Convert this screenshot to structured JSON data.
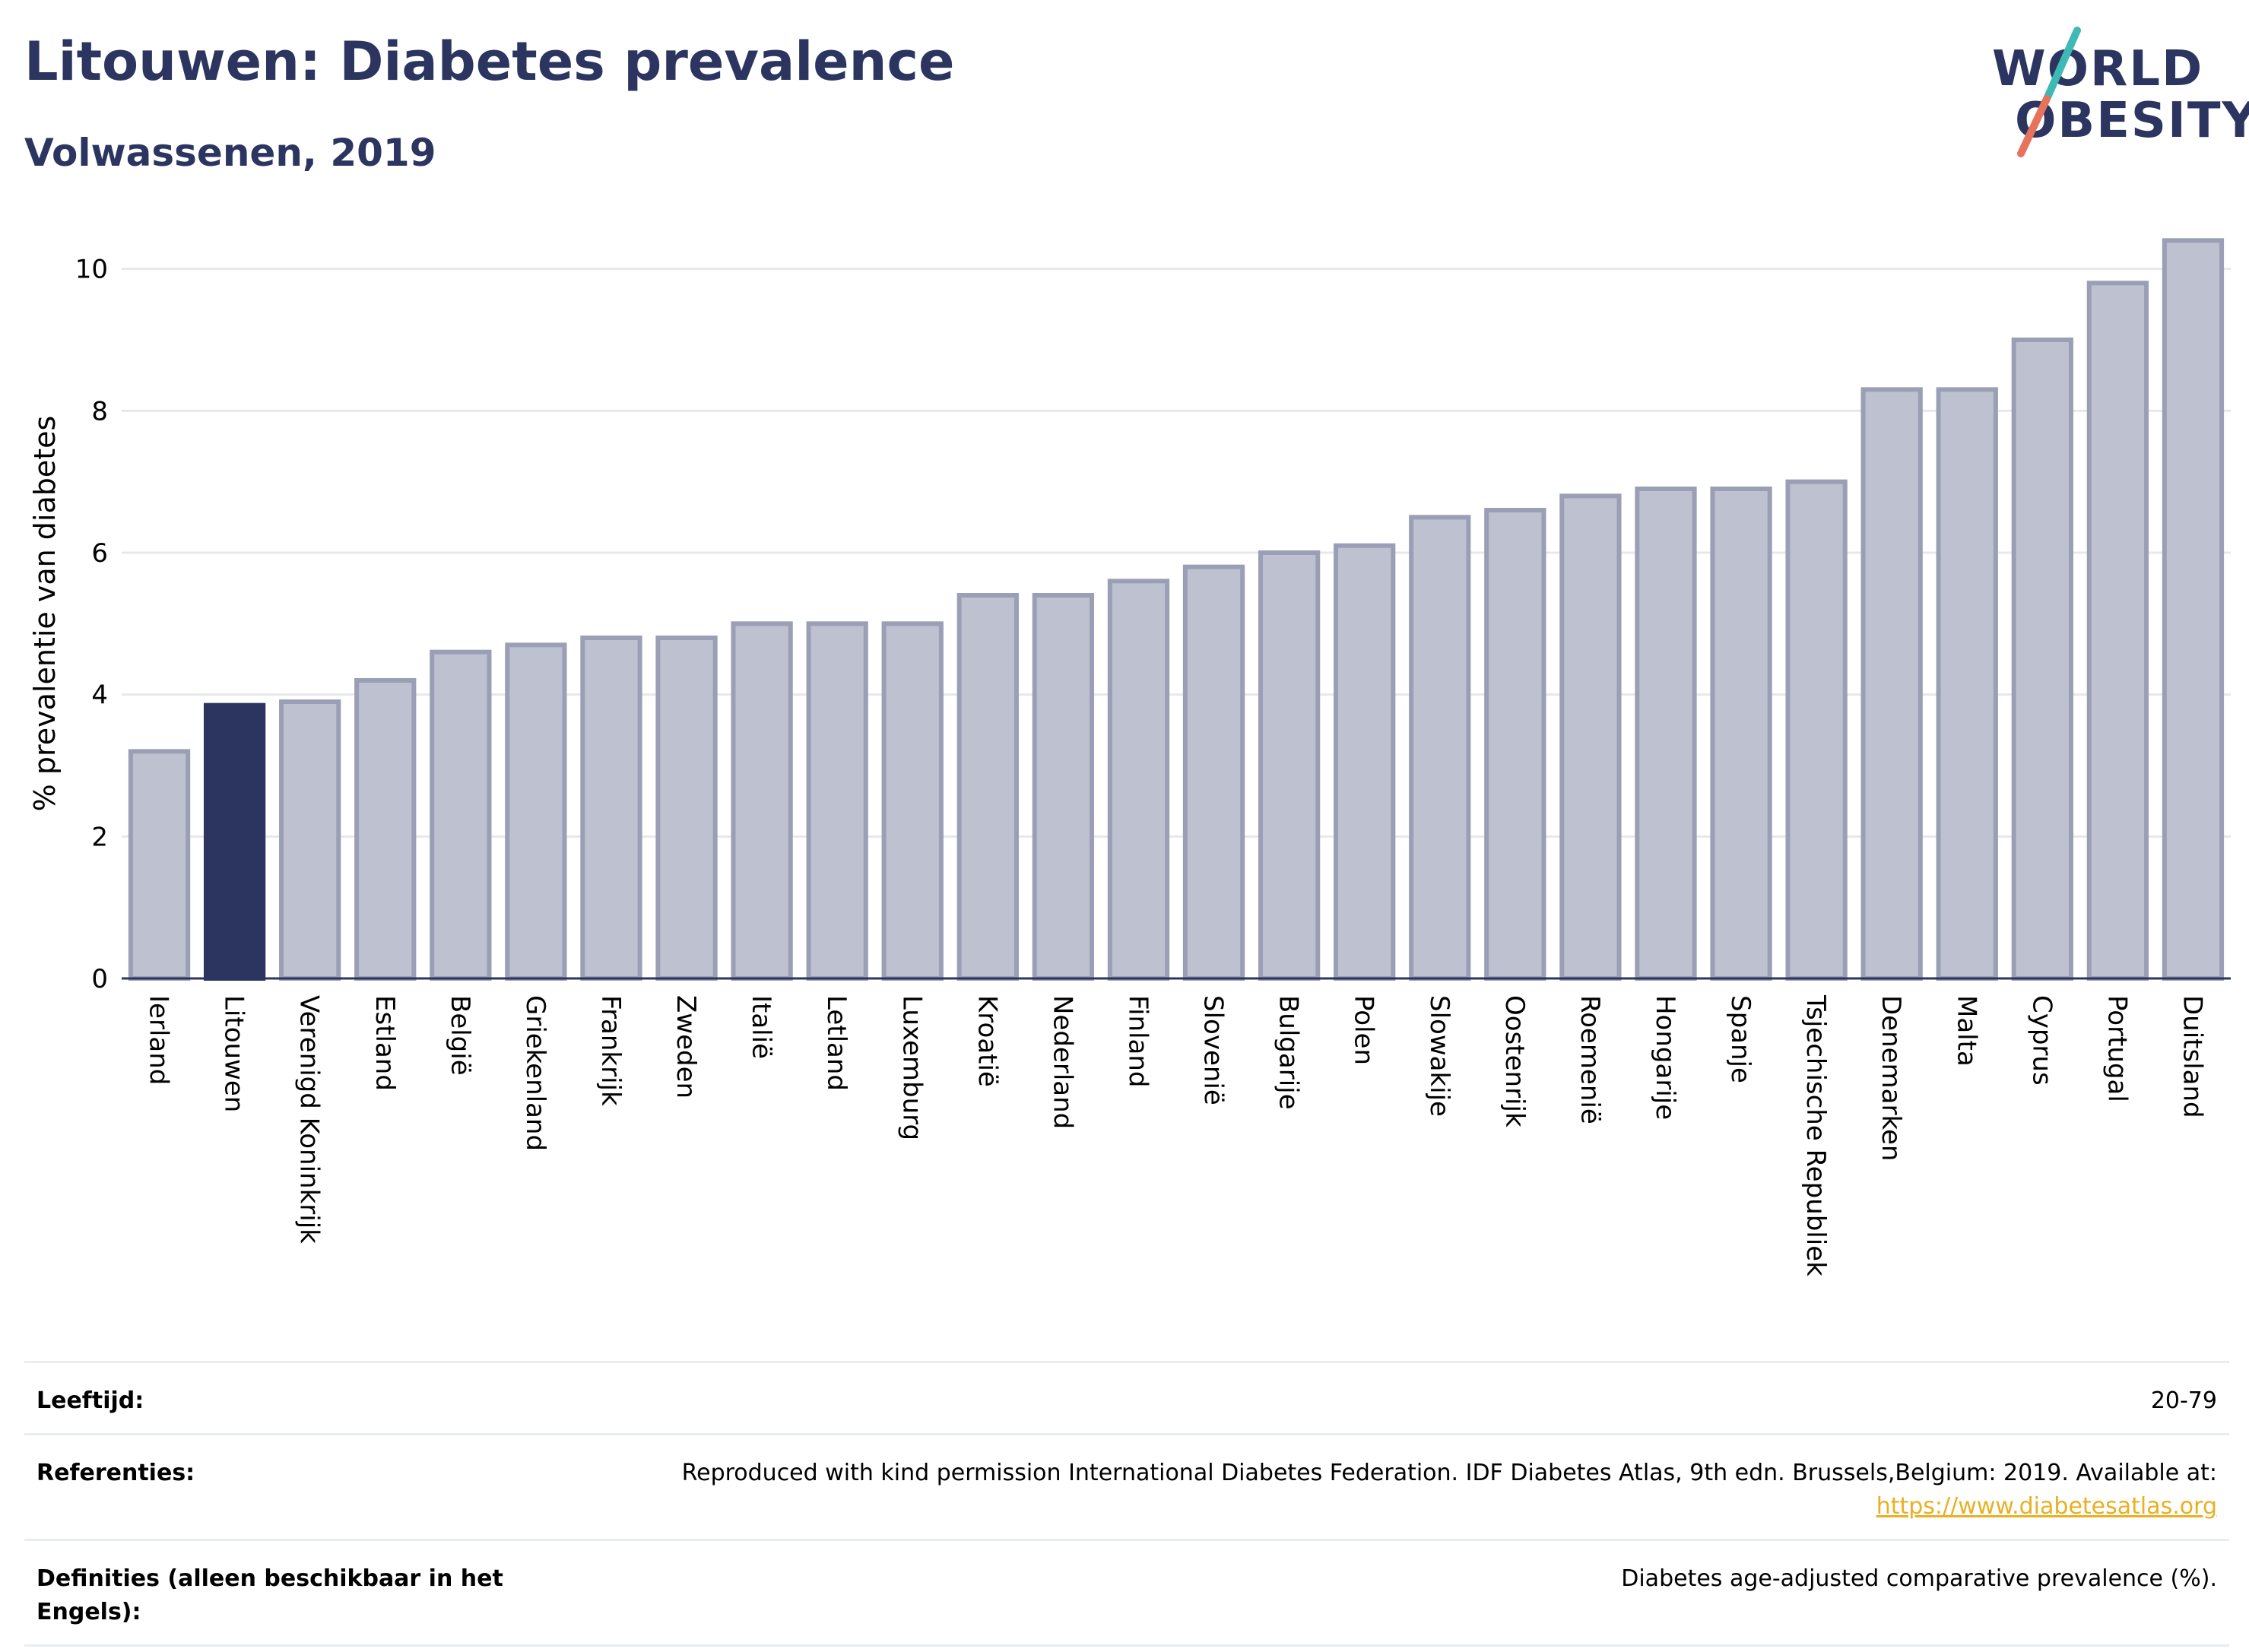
{
  "header": {
    "title": "Litouwen: Diabetes prevalence",
    "subtitle": "Volwassenen, 2019"
  },
  "logo": {
    "line1": "WORLD",
    "line2": "OBESITY",
    "slash_colors": [
      "#3fb9b5",
      "#e8735c"
    ]
  },
  "colors": {
    "highlight": "#2b3560",
    "bar_fill": "#bec1cf",
    "bar_stroke": "#9a9fb5",
    "grid": "#e6e8ec",
    "axis": "#2b3560",
    "link": "#e8b022"
  },
  "chart_data": {
    "type": "bar",
    "title": "Litouwen: Diabetes prevalence",
    "subtitle": "Volwassenen, 2019",
    "xlabel": "",
    "ylabel": "% prevalentie van diabetes",
    "ylim": [
      0,
      10.5
    ],
    "yticks": [
      0,
      2,
      4,
      6,
      8,
      10
    ],
    "grid": true,
    "highlight": "Litouwen",
    "categories": [
      "Ierland",
      "Litouwen",
      "Verenigd Koninkrijk",
      "Estland",
      "België",
      "Griekenland",
      "Frankrijk",
      "Zweden",
      "Italië",
      "Letland",
      "Luxemburg",
      "Kroatië",
      "Nederland",
      "Finland",
      "Slovenië",
      "Bulgarije",
      "Polen",
      "Slowakije",
      "Oostenrijk",
      "Roemenië",
      "Hongarije",
      "Spanje",
      "Tsjechische Republiek",
      "Denemarken",
      "Malta",
      "Cyprus",
      "Portugal",
      "Duitsland"
    ],
    "values": [
      3.2,
      3.85,
      3.9,
      4.2,
      4.6,
      4.7,
      4.8,
      4.8,
      5.0,
      5.0,
      5.0,
      5.4,
      5.4,
      5.6,
      5.8,
      6.0,
      6.1,
      6.5,
      6.6,
      6.8,
      6.9,
      6.9,
      7.0,
      8.3,
      8.3,
      9.0,
      9.8,
      10.4
    ]
  },
  "info": {
    "rows": [
      {
        "label": "Leeftijd:",
        "value": "20-79"
      },
      {
        "label": "Referenties:",
        "value": "Reproduced with kind permission International Diabetes Federation. IDF Diabetes Atlas, 9th edn. Brussels,Belgium: 2019. Available at:",
        "link": "https://www.diabetesatlas.org"
      },
      {
        "label": "Definities (alleen beschikbaar in het Engels):",
        "value": "Diabetes age-adjusted comparative prevalence (%)."
      }
    ]
  }
}
